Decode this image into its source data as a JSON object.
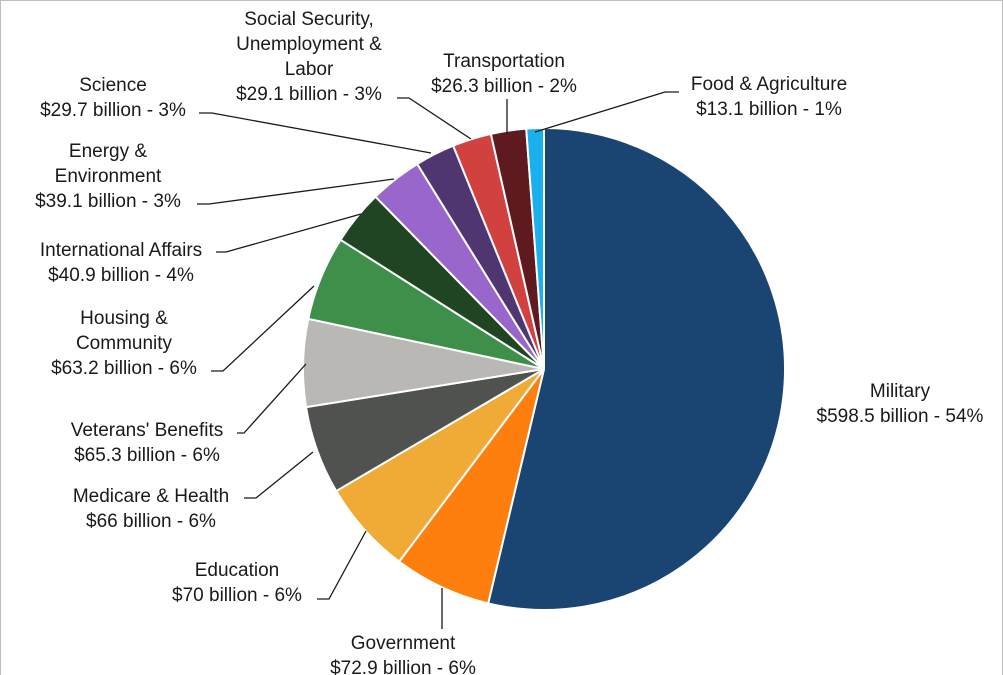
{
  "chart_data": {
    "type": "pie",
    "title": "",
    "start_angle_deg": 0,
    "direction": "clockwise",
    "slices": [
      {
        "category": "Military",
        "label_lines": [
          "Military"
        ],
        "value_text": "$598.5 billion - 54%",
        "value": 598.5,
        "percent": 54,
        "color": "#1a4472"
      },
      {
        "category": "Government",
        "label_lines": [
          "Government"
        ],
        "value_text": "$72.9 billion - 6%",
        "value": 72.9,
        "percent": 6,
        "color": "#ff7f0e"
      },
      {
        "category": "Education",
        "label_lines": [
          "Education"
        ],
        "value_text": "$70 billion - 6%",
        "value": 70,
        "percent": 6,
        "color": "#f0ab36"
      },
      {
        "category": "Medicare & Health",
        "label_lines": [
          "Medicare & Health"
        ],
        "value_text": "$66 billion - 6%",
        "value": 66,
        "percent": 6,
        "color": "#50524f"
      },
      {
        "category": "Veterans' Benefits",
        "label_lines": [
          "Veterans' Benefits"
        ],
        "value_text": "$65.3 billion - 6%",
        "value": 65.3,
        "percent": 6,
        "color": "#bab8b4"
      },
      {
        "category": "Housing & Community",
        "label_lines": [
          "Housing &",
          "Community"
        ],
        "value_text": "$63.2 billion - 6%",
        "value": 63.2,
        "percent": 6,
        "color": "#3d8f4a"
      },
      {
        "category": "International Affairs",
        "label_lines": [
          "International Affairs"
        ],
        "value_text": "$40.9 billion - 4%",
        "value": 40.9,
        "percent": 4,
        "color": "#1f4523"
      },
      {
        "category": "Energy & Environment",
        "label_lines": [
          "Energy &",
          "Environment"
        ],
        "value_text": "$39.1 billion - 3%",
        "value": 39.1,
        "percent": 3,
        "color": "#9966cc"
      },
      {
        "category": "Science",
        "label_lines": [
          "Science"
        ],
        "value_text": "$29.7 billion - 3%",
        "value": 29.7,
        "percent": 3,
        "color": "#4f3671"
      },
      {
        "category": "Social Security, Unemployment & Labor",
        "label_lines": [
          "Social Security,",
          "Unemployment &",
          "Labor"
        ],
        "value_text": "$29.1 billion - 3%",
        "value": 29.1,
        "percent": 3,
        "color": "#d0413f"
      },
      {
        "category": "Transportation",
        "label_lines": [
          "Transportation"
        ],
        "value_text": "$26.3 billion - 2%",
        "value": 26.3,
        "percent": 2,
        "color": "#5e1a1e"
      },
      {
        "category": "Food & Agriculture",
        "label_lines": [
          "Food & Agriculture"
        ],
        "value_text": "$13.1 billion - 1%",
        "value": 13.1,
        "percent": 1,
        "color": "#1ab0ee"
      }
    ]
  }
}
